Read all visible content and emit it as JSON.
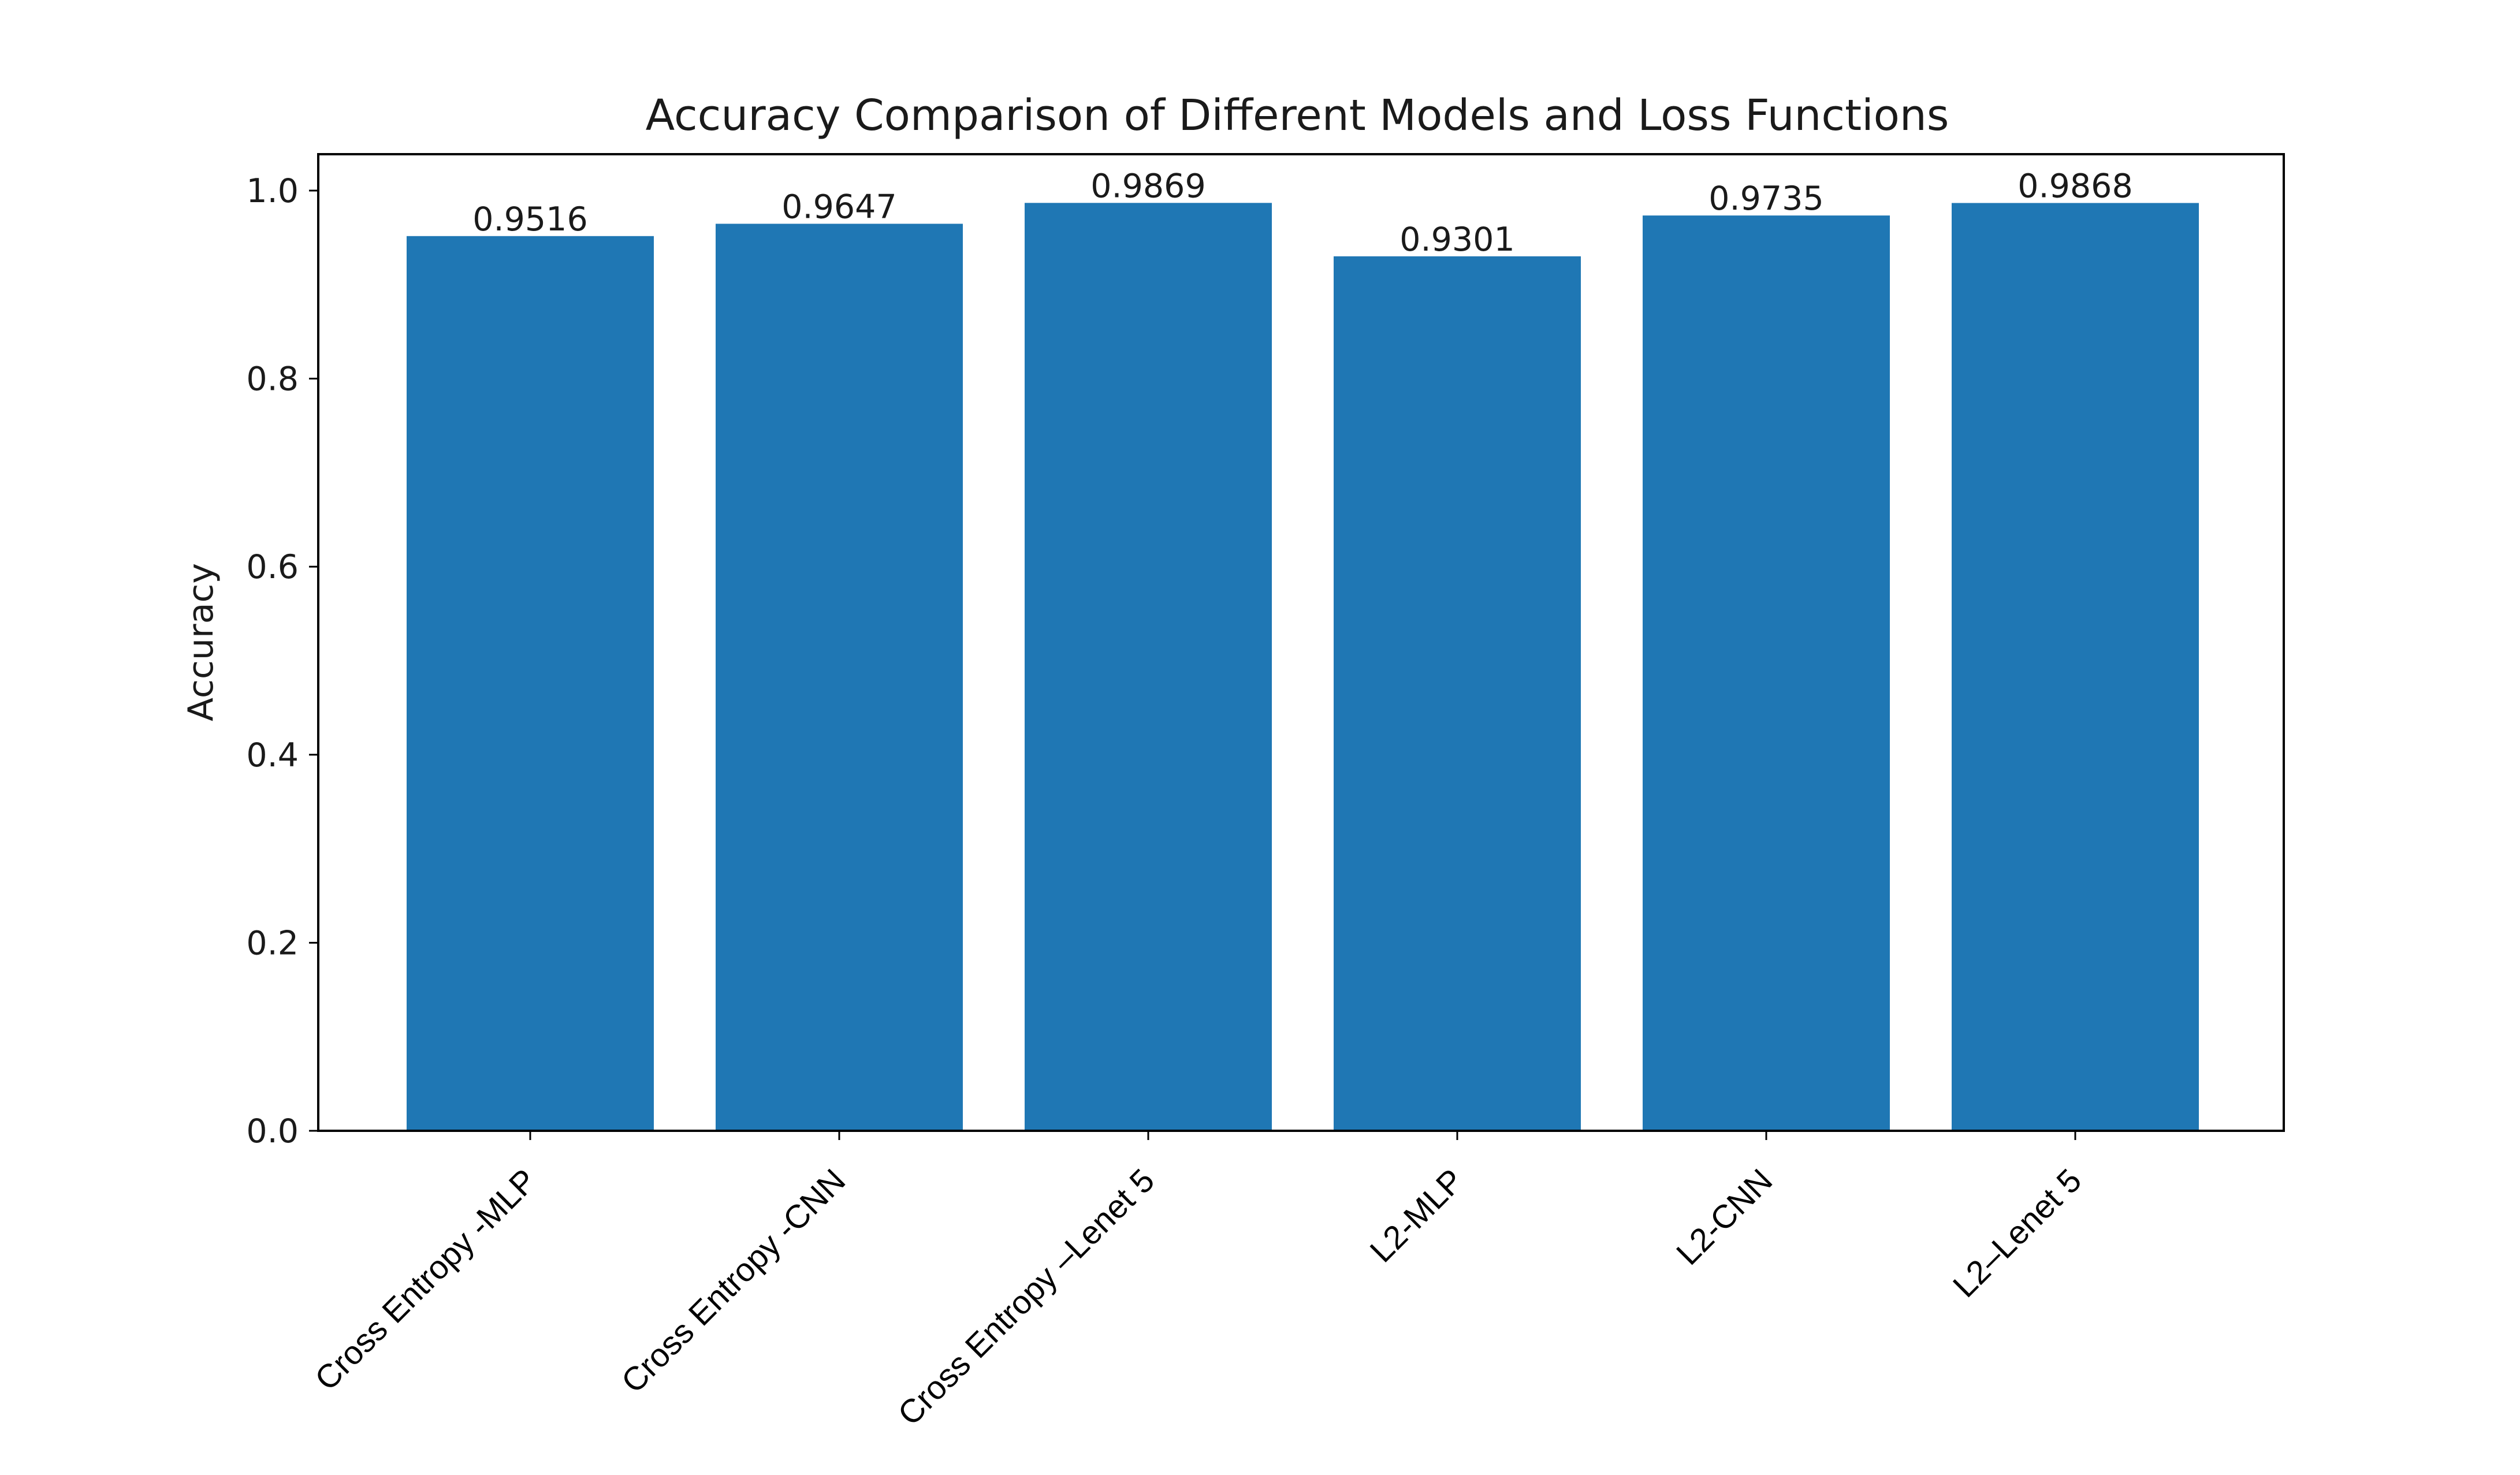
{
  "chart_data": {
    "type": "bar",
    "title": "Accuracy Comparison of Different Models and Loss Functions",
    "xlabel": "",
    "ylabel": "Accuracy",
    "categories": [
      "Cross Entropy -MLP",
      "Cross Entropy -CNN",
      "Cross Entropy –Lenet 5",
      "L2-MLP",
      "L2-CNN",
      "L2–Lenet 5"
    ],
    "values": [
      0.9516,
      0.9647,
      0.9869,
      0.9301,
      0.9735,
      0.9868
    ],
    "value_labels": [
      "0.9516",
      "0.9647",
      "0.9869",
      "0.9301",
      "0.9735",
      "0.9868"
    ],
    "ylim": [
      0.0,
      1.035
    ],
    "yticks": [
      0.0,
      0.2,
      0.4,
      0.6,
      0.8,
      1.0
    ],
    "ytick_labels": [
      "0.0",
      "0.2",
      "0.4",
      "0.6",
      "0.8",
      "1.0"
    ],
    "grid": false,
    "legend": "none",
    "bar_color": "#1f77b4",
    "x_tick_rotation_deg": 45
  }
}
